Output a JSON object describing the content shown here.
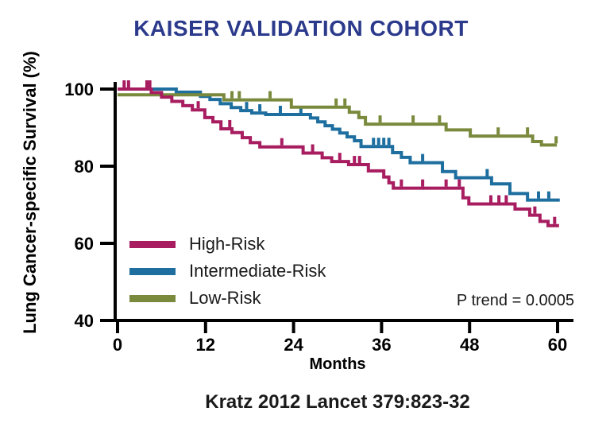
{
  "citation": "Kratz 2012 Lancet 379:823-32",
  "chart_data": {
    "type": "line",
    "subtype": "kaplan-meier-step-survival",
    "title": "KAISER VALIDATION COHORT",
    "xlabel": "Months",
    "ylabel": "Lung Cancer-specific Survival (%)",
    "annotation": "P trend = 0.0005",
    "xlim": [
      0,
      60
    ],
    "ylim": [
      40,
      100
    ],
    "x_ticks": [
      0,
      12,
      24,
      36,
      48,
      60
    ],
    "y_ticks": [
      100,
      80,
      60,
      40
    ],
    "grid": false,
    "legend_position": "inside-lower-left",
    "title_color": "#2c3a8c",
    "axis_color": "#000000",
    "series": [
      {
        "id": "high-risk",
        "name": "High-Risk",
        "color": "#a81c60",
        "end_month": 60.2,
        "points": [
          [
            0,
            100
          ],
          [
            4.6,
            99.1
          ],
          [
            6.0,
            97.9
          ],
          [
            7.4,
            96.8
          ],
          [
            8.9,
            95.7
          ],
          [
            10.2,
            94.6
          ],
          [
            11.9,
            92.6
          ],
          [
            13.0,
            91.5
          ],
          [
            14.1,
            89.7
          ],
          [
            15.6,
            88.7
          ],
          [
            17.0,
            87.4
          ],
          [
            18.1,
            86.1
          ],
          [
            19.4,
            85.0
          ],
          [
            25.3,
            83.4
          ],
          [
            27.9,
            82.2
          ],
          [
            29.2,
            81.2
          ],
          [
            31.5,
            80.4
          ],
          [
            34.2,
            78.8
          ],
          [
            36.3,
            77.2
          ],
          [
            37.0,
            75.7
          ],
          [
            37.6,
            74.3
          ],
          [
            47.1,
            71.8
          ],
          [
            47.9,
            70.2
          ],
          [
            54.2,
            68.9
          ],
          [
            56.2,
            67.3
          ],
          [
            57.6,
            65.7
          ],
          [
            58.7,
            64.6
          ]
        ],
        "censor_months": [
          0.9,
          1.5,
          4.0,
          4.4,
          11.0,
          15.3,
          22.4,
          26.6,
          30.3,
          32.3,
          33.0,
          38.7,
          41.6,
          44.8,
          46.6,
          50.9,
          52.0,
          53.0,
          56.9,
          59.6
        ]
      },
      {
        "id": "intermediate-risk",
        "name": "Intermediate-Risk",
        "color": "#1e6f9f",
        "end_month": 60.3,
        "points": [
          [
            0,
            100
          ],
          [
            8.0,
            99.2
          ],
          [
            11.3,
            98.1
          ],
          [
            12.6,
            97.3
          ],
          [
            14.0,
            96.2
          ],
          [
            15.5,
            95.2
          ],
          [
            16.8,
            94.4
          ],
          [
            18.3,
            93.8
          ],
          [
            20.2,
            93.4
          ],
          [
            26.3,
            92.5
          ],
          [
            27.3,
            91.5
          ],
          [
            28.3,
            90.5
          ],
          [
            29.3,
            89.6
          ],
          [
            30.3,
            88.6
          ],
          [
            31.3,
            87.6
          ],
          [
            32.3,
            86.6
          ],
          [
            33.2,
            85.1
          ],
          [
            37.5,
            83.5
          ],
          [
            38.7,
            82.3
          ],
          [
            39.9,
            80.9
          ],
          [
            44.3,
            78.6
          ],
          [
            46.1,
            77.0
          ],
          [
            51.0,
            75.4
          ],
          [
            53.5,
            72.9
          ],
          [
            55.9,
            71.2
          ]
        ],
        "censor_months": [
          17.6,
          19.4,
          22.2,
          25.0,
          34.9,
          35.6,
          36.3,
          37.0,
          41.6,
          50.4,
          57.4,
          58.8
        ]
      },
      {
        "id": "low-risk",
        "name": "Low-Risk",
        "color": "#7a8a3d",
        "end_month": 59.9,
        "points": [
          [
            0,
            98.5
          ],
          [
            14.5,
            97.2
          ],
          [
            23.7,
            95.3
          ],
          [
            31.6,
            94.0
          ],
          [
            32.9,
            92.6
          ],
          [
            33.8,
            90.9
          ],
          [
            44.8,
            89.4
          ],
          [
            48.1,
            87.8
          ],
          [
            56.6,
            86.4
          ],
          [
            57.8,
            85.5
          ]
        ],
        "censor_months": [
          15.6,
          16.6,
          20.8,
          29.8,
          31.0,
          35.8,
          40.3,
          43.9,
          51.9,
          55.9,
          59.8
        ]
      }
    ]
  }
}
